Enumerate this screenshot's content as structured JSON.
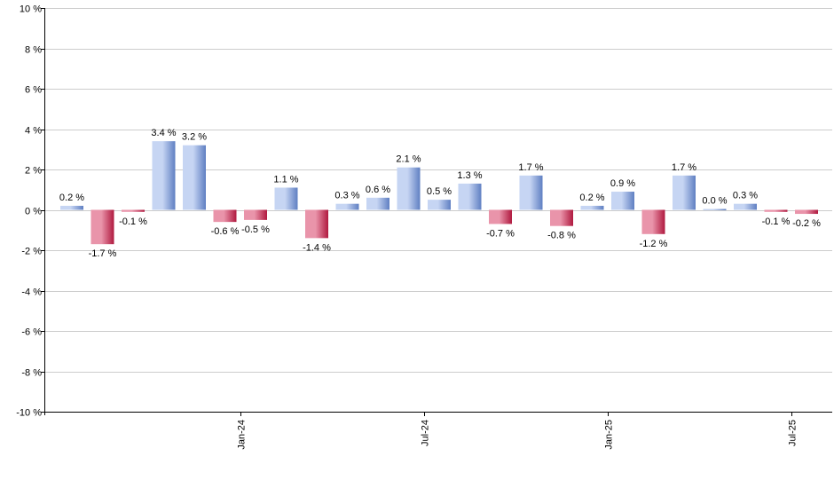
{
  "chart_data": {
    "type": "bar",
    "title": "",
    "xlabel": "",
    "ylabel": "",
    "ylim": [
      -10,
      10
    ],
    "y_ticks": [
      10,
      8,
      6,
      4,
      2,
      0,
      -2,
      -4,
      -6,
      -8,
      -10
    ],
    "y_tick_suffix": " %",
    "grid": true,
    "values": [
      0.2,
      -1.7,
      -0.1,
      3.4,
      3.2,
      -0.6,
      -0.5,
      1.1,
      -1.4,
      0.3,
      0.6,
      2.1,
      0.5,
      1.3,
      -0.7,
      1.7,
      -0.8,
      0.2,
      0.9,
      -1.2,
      1.7,
      0.0,
      0.3,
      -0.1,
      -0.2
    ],
    "value_labels": [
      "0.2 %",
      "-1.7 %",
      "-0.1 %",
      "3.4 %",
      "3.2 %",
      "-0.6 %",
      "-0.5 %",
      "1.1 %",
      "-1.4 %",
      "0.3 %",
      "0.6 %",
      "2.1 %",
      "0.5 %",
      "1.3 %",
      "-0.7 %",
      "1.7 %",
      "-0.8 %",
      "0.2 %",
      "0.9 %",
      "-1.2 %",
      "1.7 %",
      "0.0 %",
      "0.3 %",
      "-0.1 %",
      "-0.2 %"
    ],
    "x_tick_labels": [
      {
        "after_index": 5,
        "label": "Jan-24"
      },
      {
        "after_index": 11,
        "label": "Jul-24"
      },
      {
        "after_index": 17,
        "label": "Jan-25"
      },
      {
        "after_index": 23,
        "label": "Jul-25"
      }
    ],
    "colors": {
      "positive_light": "#c6d5f3",
      "positive_dark": "#5f7fc2",
      "negative_light": "#e994aa",
      "negative_dark": "#b0193f",
      "grid": "#cccccc",
      "axis": "#000000"
    }
  }
}
